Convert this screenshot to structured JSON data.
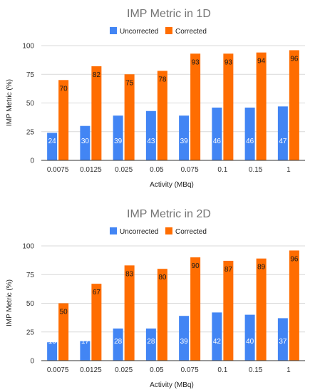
{
  "colors": {
    "uncorrected": "#4285F4",
    "corrected": "#FF6D01"
  },
  "chart_data": [
    {
      "type": "bar",
      "title": "IMP Metric in 1D",
      "xlabel": "Activity (MBq)",
      "ylabel": "IMP Metric (%)",
      "ylim": [
        0,
        100
      ],
      "yticks": [
        "0",
        "25",
        "50",
        "75",
        "100"
      ],
      "legend_position": "top-center",
      "grid": true,
      "categories": [
        "0.0075",
        "0.0125",
        "0.025",
        "0.05",
        "0.075",
        "0.1",
        "0.15",
        "1"
      ],
      "series": [
        {
          "name": "Uncorrected",
          "values": [
            24,
            30,
            39,
            43,
            39,
            46,
            46,
            47
          ]
        },
        {
          "name": "Corrected",
          "values": [
            70,
            82,
            75,
            78,
            93,
            93,
            94,
            96
          ]
        }
      ]
    },
    {
      "type": "bar",
      "title": "IMP Metric in 2D",
      "xlabel": "Activity (MBq)",
      "ylabel": "IMP Metric (%)",
      "ylim": [
        0,
        100
      ],
      "yticks": [
        "0",
        "25",
        "50",
        "75",
        "100"
      ],
      "legend_position": "top-center",
      "grid": true,
      "categories": [
        "0.0075",
        "0.0125",
        "0.025",
        "0.05",
        "0.075",
        "0.1",
        "0.15",
        "1"
      ],
      "series": [
        {
          "name": "Uncorrected",
          "values": [
            16,
            17,
            28,
            28,
            39,
            42,
            40,
            37
          ]
        },
        {
          "name": "Corrected",
          "values": [
            50,
            67,
            83,
            80,
            90,
            87,
            89,
            96
          ]
        }
      ]
    }
  ]
}
